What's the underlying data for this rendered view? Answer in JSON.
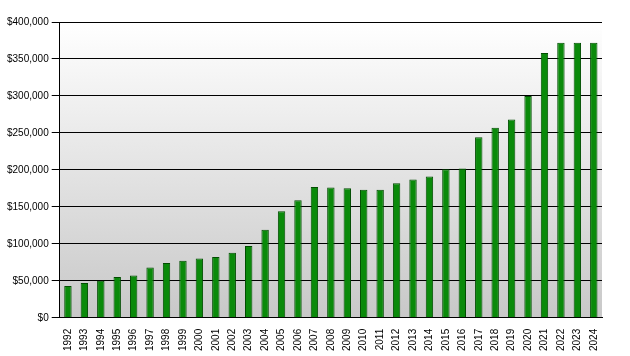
{
  "chart_data": {
    "type": "bar",
    "categories": [
      "1992",
      "1993",
      "1994",
      "1995",
      "1996",
      "1997",
      "1998",
      "1999",
      "2000",
      "2001",
      "2002",
      "2003",
      "2004",
      "2005",
      "2006",
      "2007",
      "2008",
      "2009",
      "2010",
      "2011",
      "2012",
      "2013",
      "2014",
      "2015",
      "2016",
      "2017",
      "2018",
      "2019",
      "2020",
      "2021",
      "2022",
      "2023",
      "2024"
    ],
    "values": [
      43000,
      47000,
      50000,
      55000,
      57000,
      68000,
      74000,
      77000,
      80000,
      82000,
      88000,
      97000,
      119000,
      144000,
      159000,
      177000,
      176000,
      175000,
      173000,
      173000,
      182000,
      187000,
      191000,
      201000,
      202000,
      244000,
      257000,
      268000,
      300000,
      358000,
      372000,
      372000,
      372000
    ],
    "color": "#0a8a0a",
    "ylim": [
      0,
      400000
    ],
    "yticks": [
      {
        "value": 0,
        "label": "$0"
      },
      {
        "value": 50000,
        "label": "$50,000"
      },
      {
        "value": 100000,
        "label": "$100,000"
      },
      {
        "value": 150000,
        "label": "$150,000"
      },
      {
        "value": 200000,
        "label": "$200,000"
      },
      {
        "value": 250000,
        "label": "$250,000"
      },
      {
        "value": 300000,
        "label": "$300,000"
      },
      {
        "value": 350000,
        "label": "$350,000"
      },
      {
        "value": 400000,
        "label": "$400,000"
      }
    ],
    "grid": true
  }
}
